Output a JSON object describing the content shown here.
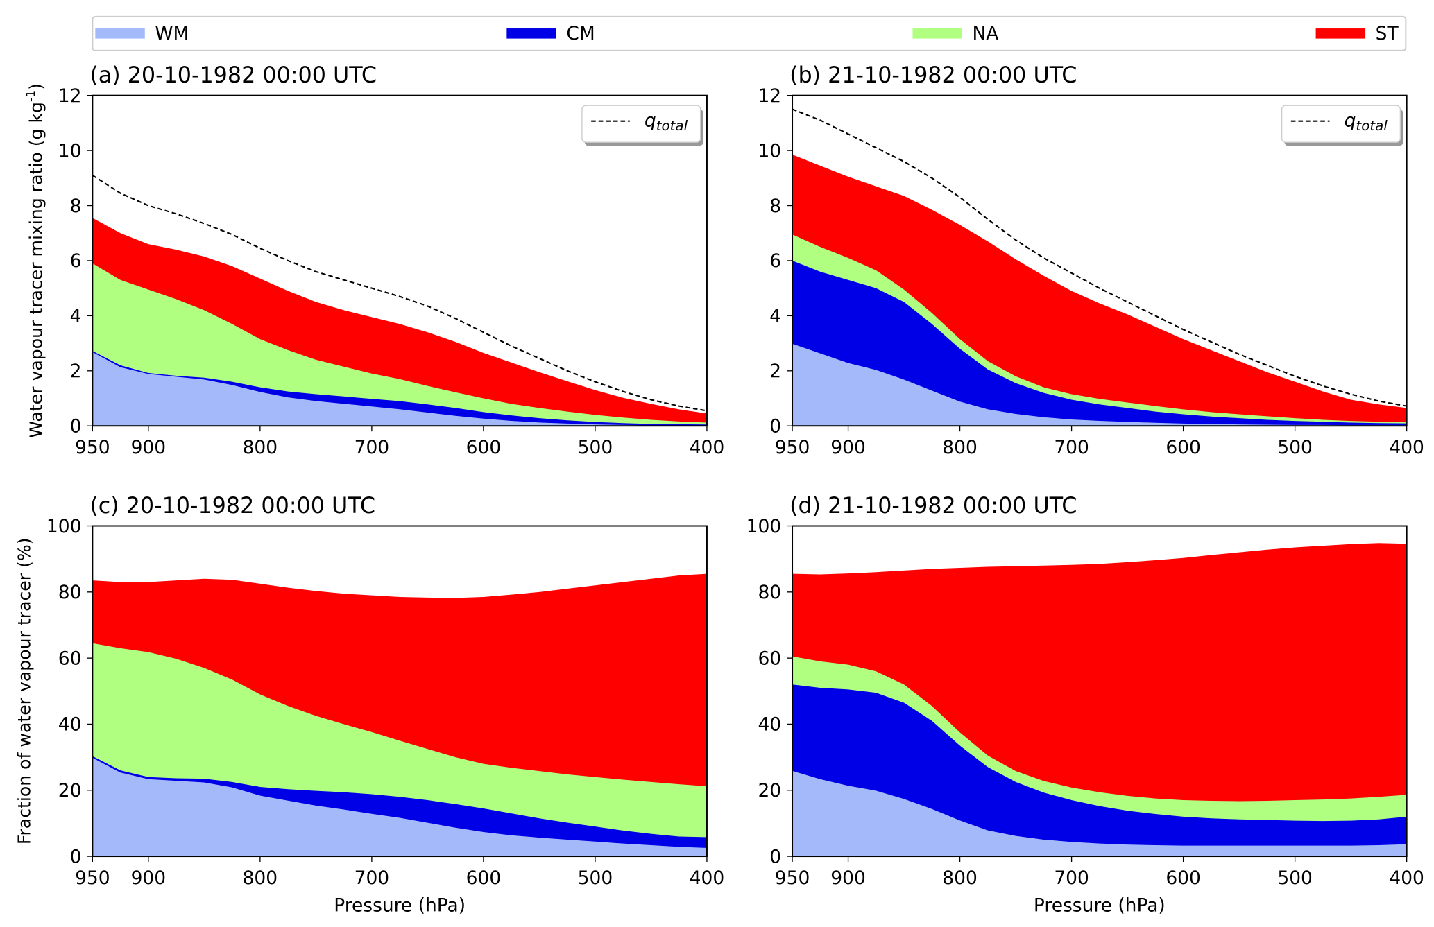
{
  "legend": [
    {
      "name": "WM",
      "color": "#a4b9f9"
    },
    {
      "name": "CM",
      "color": "#0000e6"
    },
    {
      "name": "NA",
      "color": "#b0ff80"
    },
    {
      "name": "ST",
      "color": "#ff0000"
    }
  ],
  "chart_data": [
    {
      "type": "area",
      "title": "(a) 20-10-1982 00:00 UTC",
      "ylabel": "Water vapour tracer mixing ratio (g kg$^{-1}$)",
      "ylabel_text": "Water vapour tracer mixing ratio (g kg",
      "ylabel_sup": "-1",
      "xlabel": "",
      "xlim": [
        950,
        400
      ],
      "ylim": [
        0,
        12
      ],
      "xticks": [
        950,
        900,
        800,
        700,
        600,
        500,
        400
      ],
      "yticks": [
        0,
        2,
        4,
        6,
        8,
        10,
        12
      ],
      "line_legend": {
        "label": "q",
        "sub": "total",
        "placement": "top-right"
      },
      "x": [
        950,
        925,
        900,
        875,
        850,
        825,
        800,
        775,
        750,
        725,
        700,
        675,
        650,
        625,
        600,
        575,
        550,
        525,
        500,
        475,
        450,
        425,
        400
      ],
      "stacked_cumulative": {
        "WM": [
          2.7,
          2.15,
          1.9,
          1.8,
          1.7,
          1.5,
          1.25,
          1.05,
          0.92,
          0.82,
          0.72,
          0.62,
          0.5,
          0.38,
          0.28,
          0.2,
          0.14,
          0.1,
          0.07,
          0.05,
          0.03,
          0.02,
          0.02
        ],
        "CM": [
          2.72,
          2.2,
          1.92,
          1.82,
          1.75,
          1.6,
          1.4,
          1.25,
          1.15,
          1.07,
          0.98,
          0.9,
          0.78,
          0.65,
          0.5,
          0.38,
          0.28,
          0.2,
          0.14,
          0.1,
          0.07,
          0.06,
          0.05
        ],
        "NA": [
          5.9,
          5.3,
          4.95,
          4.6,
          4.2,
          3.7,
          3.15,
          2.75,
          2.4,
          2.15,
          1.9,
          1.7,
          1.45,
          1.22,
          1.0,
          0.8,
          0.65,
          0.52,
          0.4,
          0.3,
          0.22,
          0.16,
          0.12
        ],
        "ST": [
          7.55,
          7.0,
          6.6,
          6.4,
          6.15,
          5.8,
          5.35,
          4.9,
          4.5,
          4.2,
          3.95,
          3.7,
          3.4,
          3.05,
          2.65,
          2.3,
          1.95,
          1.62,
          1.3,
          1.02,
          0.8,
          0.6,
          0.45
        ]
      },
      "q_total": [
        9.1,
        8.45,
        8.0,
        7.7,
        7.35,
        6.95,
        6.45,
        6.0,
        5.6,
        5.3,
        5.0,
        4.7,
        4.35,
        3.9,
        3.4,
        2.9,
        2.45,
        2.0,
        1.6,
        1.25,
        0.95,
        0.72,
        0.55
      ]
    },
    {
      "type": "area",
      "title": "(b) 21-10-1982 00:00 UTC",
      "xlabel": "",
      "xlim": [
        950,
        400
      ],
      "ylim": [
        0,
        12
      ],
      "xticks": [
        950,
        900,
        800,
        700,
        600,
        500,
        400
      ],
      "yticks": [
        0,
        2,
        4,
        6,
        8,
        10,
        12
      ],
      "line_legend": {
        "label": "q",
        "sub": "total",
        "placement": "top-right"
      },
      "x": [
        950,
        925,
        900,
        875,
        850,
        825,
        800,
        775,
        750,
        725,
        700,
        675,
        650,
        625,
        600,
        575,
        550,
        525,
        500,
        475,
        450,
        425,
        400
      ],
      "stacked_cumulative": {
        "WM": [
          3.0,
          2.65,
          2.3,
          2.05,
          1.7,
          1.3,
          0.9,
          0.62,
          0.45,
          0.33,
          0.25,
          0.2,
          0.16,
          0.13,
          0.1,
          0.08,
          0.07,
          0.06,
          0.05,
          0.05,
          0.04,
          0.04,
          0.04
        ],
        "CM": [
          6.0,
          5.6,
          5.3,
          5.0,
          4.5,
          3.7,
          2.8,
          2.05,
          1.55,
          1.2,
          0.95,
          0.78,
          0.65,
          0.52,
          0.42,
          0.34,
          0.28,
          0.22,
          0.18,
          0.15,
          0.12,
          0.1,
          0.09
        ],
        "NA": [
          6.95,
          6.5,
          6.1,
          5.65,
          4.95,
          4.1,
          3.15,
          2.35,
          1.8,
          1.4,
          1.15,
          0.98,
          0.85,
          0.72,
          0.6,
          0.5,
          0.42,
          0.35,
          0.28,
          0.22,
          0.18,
          0.15,
          0.13
        ],
        "ST": [
          9.85,
          9.45,
          9.05,
          8.7,
          8.35,
          7.85,
          7.3,
          6.7,
          6.05,
          5.45,
          4.9,
          4.45,
          4.05,
          3.6,
          3.15,
          2.75,
          2.35,
          1.95,
          1.6,
          1.25,
          0.95,
          0.78,
          0.65
        ]
      },
      "q_total": [
        11.5,
        11.1,
        10.6,
        10.1,
        9.6,
        9.0,
        8.3,
        7.5,
        6.75,
        6.1,
        5.55,
        5.0,
        4.5,
        4.0,
        3.5,
        3.05,
        2.6,
        2.2,
        1.8,
        1.45,
        1.15,
        0.9,
        0.72
      ]
    },
    {
      "type": "area",
      "title": "(c) 20-10-1982 00:00 UTC",
      "ylabel_text": "Fraction of water vapour tracer (%)",
      "xlabel": "Pressure (hPa)",
      "xlim": [
        950,
        400
      ],
      "ylim": [
        0,
        100
      ],
      "xticks": [
        950,
        900,
        800,
        700,
        600,
        500,
        400
      ],
      "yticks": [
        0,
        20,
        40,
        60,
        80,
        100
      ],
      "x": [
        950,
        925,
        900,
        875,
        850,
        825,
        800,
        775,
        750,
        725,
        700,
        675,
        650,
        625,
        600,
        575,
        550,
        525,
        500,
        475,
        450,
        425,
        400
      ],
      "stacked_cumulative": {
        "WM": [
          30,
          25.5,
          23.5,
          23,
          22.5,
          21,
          18.5,
          17,
          15.5,
          14.3,
          13,
          11.8,
          10.3,
          8.8,
          7.5,
          6.5,
          5.8,
          5.2,
          4.6,
          4,
          3.5,
          3,
          2.7
        ],
        "CM": [
          30.3,
          26,
          24,
          23.6,
          23.5,
          22.5,
          21,
          20.3,
          19.8,
          19.4,
          18.8,
          18,
          17,
          15.8,
          14.5,
          13,
          11.5,
          10.2,
          9,
          7.8,
          6.8,
          6,
          5.8
        ],
        "NA": [
          64.5,
          63,
          61.8,
          59.8,
          57,
          53.5,
          49,
          45.5,
          42.5,
          40,
          37.6,
          35,
          32.5,
          30,
          28,
          26.8,
          25.8,
          24.8,
          24,
          23.2,
          22.5,
          21.8,
          21.2
        ],
        "ST": [
          83.5,
          83,
          83,
          83.5,
          84,
          83.7,
          82.5,
          81.3,
          80.3,
          79.5,
          79,
          78.5,
          78.3,
          78.2,
          78.5,
          79.2,
          80,
          81,
          82,
          83,
          84,
          85,
          85.5
        ]
      }
    },
    {
      "type": "area",
      "title": "(d) 21-10-1982 00:00 UTC",
      "xlabel": "Pressure (hPa)",
      "xlim": [
        950,
        400
      ],
      "ylim": [
        0,
        100
      ],
      "xticks": [
        950,
        900,
        800,
        700,
        600,
        500,
        400
      ],
      "yticks": [
        0,
        20,
        40,
        60,
        80,
        100
      ],
      "x": [
        950,
        925,
        900,
        875,
        850,
        825,
        800,
        775,
        750,
        725,
        700,
        675,
        650,
        625,
        600,
        575,
        550,
        525,
        500,
        475,
        450,
        425,
        400
      ],
      "stacked_cumulative": {
        "WM": [
          26,
          23.5,
          21.5,
          20,
          17.5,
          14.5,
          11,
          8,
          6.3,
          5.2,
          4.5,
          4,
          3.7,
          3.5,
          3.4,
          3.4,
          3.4,
          3.4,
          3.4,
          3.4,
          3.4,
          3.5,
          3.8
        ],
        "CM": [
          52,
          51,
          50.5,
          49.5,
          46.5,
          41,
          33.5,
          27,
          22.5,
          19.3,
          17,
          15.2,
          13.8,
          12.8,
          12,
          11.5,
          11.2,
          11,
          10.8,
          10.7,
          10.8,
          11.2,
          12
        ],
        "NA": [
          60.5,
          59,
          58,
          56,
          52,
          45.5,
          37.5,
          30.5,
          25.8,
          22.8,
          20.8,
          19.4,
          18.3,
          17.5,
          17,
          16.8,
          16.7,
          16.8,
          17,
          17.2,
          17.5,
          18,
          18.6
        ],
        "ST": [
          85.5,
          85.3,
          85.6,
          86,
          86.5,
          87,
          87.3,
          87.6,
          87.8,
          88,
          88.2,
          88.5,
          89,
          89.6,
          90.3,
          91.2,
          92,
          92.8,
          93.5,
          94,
          94.5,
          94.8,
          94.6
        ]
      }
    }
  ]
}
